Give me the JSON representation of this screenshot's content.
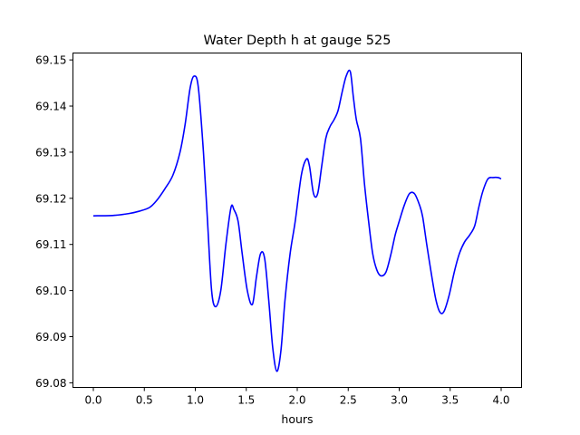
{
  "chart_data": {
    "type": "line",
    "title": "Water Depth h at gauge 525",
    "xlabel": "hours",
    "ylabel": "",
    "xlim": [
      -0.2,
      4.2
    ],
    "ylim": [
      69.079,
      69.1515
    ],
    "xticks": [
      0.0,
      0.5,
      1.0,
      1.5,
      2.0,
      2.5,
      3.0,
      3.5,
      4.0
    ],
    "xtick_labels": [
      "0.0",
      "0.5",
      "1.0",
      "1.5",
      "2.0",
      "2.5",
      "3.0",
      "3.5",
      "4.0"
    ],
    "yticks": [
      69.08,
      69.09,
      69.1,
      69.11,
      69.12,
      69.13,
      69.14,
      69.15
    ],
    "ytick_labels": [
      "69.08",
      "69.09",
      "69.10",
      "69.11",
      "69.12",
      "69.13",
      "69.14",
      "69.15"
    ],
    "grid": false,
    "series": [
      {
        "color": "#0000ff",
        "x": [
          0.0,
          0.2,
          0.35,
          0.45,
          0.55,
          0.62,
          0.7,
          0.78,
          0.85,
          0.9,
          0.95,
          0.99,
          1.03,
          1.08,
          1.12,
          1.16,
          1.2,
          1.25,
          1.3,
          1.35,
          1.38,
          1.42,
          1.46,
          1.51,
          1.56,
          1.6,
          1.64,
          1.68,
          1.72,
          1.76,
          1.8,
          1.84,
          1.88,
          1.93,
          1.98,
          2.04,
          2.09,
          2.12,
          2.16,
          2.2,
          2.24,
          2.28,
          2.32,
          2.36,
          2.4,
          2.44,
          2.48,
          2.52,
          2.55,
          2.58,
          2.62,
          2.66,
          2.7,
          2.74,
          2.78,
          2.82,
          2.87,
          2.92,
          2.96,
          3.0,
          3.05,
          3.1,
          3.15,
          3.2,
          3.23,
          3.27,
          3.32,
          3.36,
          3.4,
          3.44,
          3.49,
          3.54,
          3.59,
          3.64,
          3.69,
          3.74,
          3.78,
          3.82,
          3.87,
          3.92,
          3.97,
          4.0
        ],
        "y": [
          69.1162,
          69.1163,
          69.1167,
          69.1172,
          69.118,
          69.1195,
          69.122,
          69.125,
          69.13,
          69.136,
          69.144,
          69.1465,
          69.144,
          69.13,
          69.115,
          69.1,
          69.0965,
          69.1,
          69.11,
          69.118,
          69.1175,
          69.115,
          69.108,
          69.1,
          69.097,
          69.103,
          69.108,
          69.107,
          69.098,
          69.0875,
          69.0825,
          69.087,
          69.098,
          69.108,
          69.115,
          69.125,
          69.1285,
          69.127,
          69.121,
          69.121,
          69.127,
          69.133,
          69.1355,
          69.137,
          69.139,
          69.143,
          69.1465,
          69.1475,
          69.142,
          69.137,
          69.133,
          69.123,
          69.115,
          69.108,
          69.1045,
          69.1032,
          69.104,
          69.108,
          69.112,
          69.115,
          69.1185,
          69.121,
          69.121,
          69.1185,
          69.116,
          69.11,
          69.103,
          69.098,
          69.0953,
          69.0955,
          69.099,
          69.104,
          69.108,
          69.1105,
          69.112,
          69.114,
          69.118,
          69.1215,
          69.1242,
          69.1245,
          69.1245,
          69.1242
        ]
      }
    ]
  }
}
